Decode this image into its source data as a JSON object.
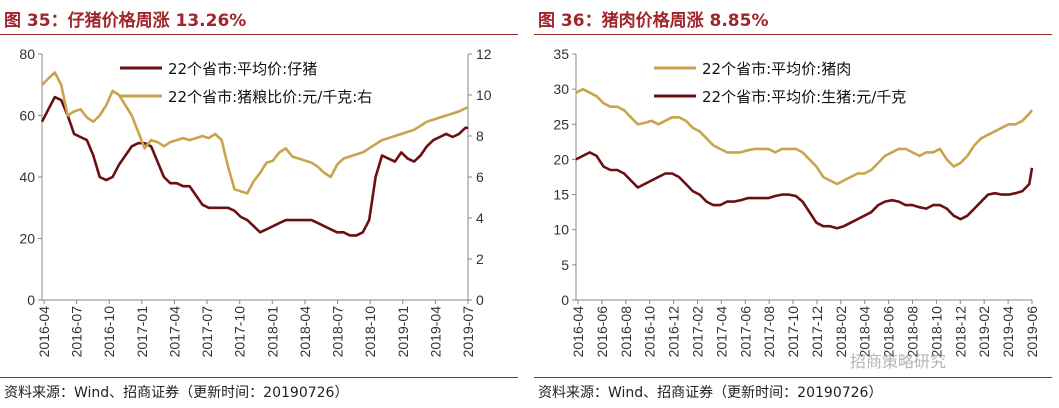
{
  "colors": {
    "title": "#a0262b",
    "dark_series": "#6b0f12",
    "gold_series": "#c8a44c"
  },
  "watermark": "招商策略研究",
  "chart_data": [
    {
      "type": "line",
      "title": "图 35：仔猪价格周涨 13.26%",
      "source": "资料来源：Wind、招商证券（更新时间：20190726）",
      "x_ticks": [
        "2016-04",
        "2016-07",
        "2016-10",
        "2017-01",
        "2017-04",
        "2017-07",
        "2017-10",
        "2018-01",
        "2018-04",
        "2018-07",
        "2018-10",
        "2019-01",
        "2019-04",
        "2019-07"
      ],
      "x_range": [
        2016.25,
        2019.57
      ],
      "y_left": {
        "range": [
          0,
          80
        ],
        "ticks": [
          0,
          20,
          40,
          60,
          80
        ]
      },
      "y_right": {
        "range": [
          0,
          12
        ],
        "ticks": [
          0,
          2,
          4,
          6,
          8,
          10,
          12
        ]
      },
      "legend_placement": "top-center",
      "series": [
        {
          "name": "22个省市:平均价:仔猪",
          "axis": "left",
          "color": "#6b0f12",
          "x": [
            2016.25,
            2016.3,
            2016.35,
            2016.4,
            2016.45,
            2016.5,
            2016.55,
            2016.6,
            2016.65,
            2016.7,
            2016.75,
            2016.8,
            2016.85,
            2016.9,
            2016.95,
            2017.0,
            2017.05,
            2017.1,
            2017.15,
            2017.2,
            2017.25,
            2017.3,
            2017.35,
            2017.4,
            2017.45,
            2017.5,
            2017.55,
            2017.6,
            2017.65,
            2017.7,
            2017.75,
            2017.8,
            2017.85,
            2017.9,
            2017.95,
            2018.0,
            2018.05,
            2018.1,
            2018.15,
            2018.2,
            2018.25,
            2018.3,
            2018.35,
            2018.4,
            2018.45,
            2018.5,
            2018.55,
            2018.6,
            2018.65,
            2018.7,
            2018.75,
            2018.8,
            2018.85,
            2018.9,
            2018.95,
            2019.0,
            2019.05,
            2019.1,
            2019.15,
            2019.2,
            2019.25,
            2019.3,
            2019.35,
            2019.4,
            2019.45,
            2019.5,
            2019.55,
            2019.57
          ],
          "y": [
            58,
            62,
            66,
            65,
            60,
            54,
            53,
            52,
            47,
            40,
            39,
            40,
            44,
            47,
            50,
            51,
            51,
            50,
            45,
            40,
            38,
            38,
            37,
            37,
            34,
            31,
            30,
            30,
            30,
            30,
            29,
            27,
            26,
            24,
            22,
            23,
            24,
            25,
            26,
            26,
            26,
            26,
            26,
            25,
            24,
            23,
            22,
            22,
            21,
            21,
            22,
            26,
            40,
            47,
            46,
            45,
            48,
            46,
            45,
            47,
            50,
            52,
            53,
            54,
            53,
            54,
            56,
            56
          ]
        },
        {
          "name": "22个省市:猪粮比价:元/千克:右",
          "axis": "right",
          "color": "#c8a44c",
          "x": [
            2016.25,
            2016.3,
            2016.35,
            2016.4,
            2016.45,
            2016.5,
            2016.55,
            2016.6,
            2016.65,
            2016.7,
            2016.75,
            2016.8,
            2016.85,
            2016.9,
            2016.95,
            2017.0,
            2017.05,
            2017.1,
            2017.15,
            2017.2,
            2017.25,
            2017.3,
            2017.35,
            2017.4,
            2017.45,
            2017.5,
            2017.55,
            2017.6,
            2017.65,
            2017.7,
            2017.75,
            2017.8,
            2017.85,
            2017.9,
            2017.95,
            2018.0,
            2018.05,
            2018.1,
            2018.15,
            2018.2,
            2018.25,
            2018.3,
            2018.35,
            2018.4,
            2018.45,
            2018.5,
            2018.55,
            2018.6,
            2018.65,
            2018.7,
            2018.75,
            2018.8,
            2018.85,
            2018.9,
            2018.95,
            2019.0,
            2019.05,
            2019.1,
            2019.15,
            2019.2,
            2019.25,
            2019.3,
            2019.35,
            2019.4,
            2019.45,
            2019.5,
            2019.55,
            2019.57
          ],
          "y": [
            10.5,
            10.8,
            11.1,
            10.5,
            9.0,
            9.2,
            9.3,
            8.9,
            8.7,
            9.0,
            9.5,
            10.2,
            10.0,
            9.5,
            9.0,
            8.2,
            7.4,
            7.8,
            7.7,
            7.5,
            7.7,
            7.8,
            7.9,
            7.8,
            7.9,
            8.0,
            7.9,
            8.1,
            7.8,
            6.5,
            5.4,
            5.3,
            5.2,
            5.8,
            6.2,
            6.7,
            6.8,
            7.2,
            7.4,
            7.0,
            6.9,
            6.8,
            6.7,
            6.5,
            6.2,
            6.0,
            6.6,
            6.9,
            7.0,
            7.1,
            7.2,
            7.4,
            7.6,
            7.8,
            7.9,
            8.0,
            8.1,
            8.2,
            8.3,
            8.5,
            8.7,
            8.8,
            8.9,
            9.0,
            9.1,
            9.2,
            9.35,
            9.4
          ]
        }
      ]
    },
    {
      "type": "line",
      "title": "图 36：猪肉价格周涨 8.85%",
      "source": "资料来源：Wind、招商证券（更新时间：20190726）",
      "x_ticks": [
        "2016-04",
        "2016-06",
        "2016-08",
        "2016-10",
        "2016-12",
        "2017-02",
        "2017-04",
        "2017-06",
        "2017-08",
        "2017-10",
        "2017-12",
        "2018-02",
        "2018-04",
        "2018-06",
        "2018-08",
        "2018-10",
        "2018-12",
        "2019-02",
        "2019-04",
        "2019-06"
      ],
      "x_range": [
        2016.25,
        2019.57
      ],
      "y_left": {
        "range": [
          0,
          35
        ],
        "ticks": [
          0,
          5,
          10,
          15,
          20,
          25,
          30,
          35
        ]
      },
      "legend_placement": "top-center",
      "series": [
        {
          "name": "22个省市:平均价:猪肉",
          "axis": "left",
          "color": "#c8a44c",
          "x": [
            2016.25,
            2016.3,
            2016.35,
            2016.4,
            2016.45,
            2016.5,
            2016.55,
            2016.6,
            2016.65,
            2016.7,
            2016.75,
            2016.8,
            2016.85,
            2016.9,
            2016.95,
            2017.0,
            2017.05,
            2017.1,
            2017.15,
            2017.2,
            2017.25,
            2017.3,
            2017.35,
            2017.4,
            2017.45,
            2017.5,
            2017.55,
            2017.6,
            2017.65,
            2017.7,
            2017.75,
            2017.8,
            2017.85,
            2017.9,
            2017.95,
            2018.0,
            2018.05,
            2018.1,
            2018.15,
            2018.2,
            2018.25,
            2018.3,
            2018.35,
            2018.4,
            2018.45,
            2018.5,
            2018.55,
            2018.6,
            2018.65,
            2018.7,
            2018.75,
            2018.8,
            2018.85,
            2018.9,
            2018.95,
            2019.0,
            2019.05,
            2019.1,
            2019.15,
            2019.2,
            2019.25,
            2019.3,
            2019.35,
            2019.4,
            2019.45,
            2019.5,
            2019.55,
            2019.57
          ],
          "y": [
            29.5,
            30.0,
            29.5,
            29.0,
            28.0,
            27.5,
            27.5,
            27.0,
            26.0,
            25.0,
            25.2,
            25.5,
            25.0,
            25.5,
            26.0,
            26.0,
            25.5,
            24.5,
            24.0,
            23.0,
            22.0,
            21.5,
            21.0,
            21.0,
            21.0,
            21.3,
            21.5,
            21.5,
            21.5,
            21.0,
            21.5,
            21.5,
            21.5,
            21.0,
            20.0,
            19.0,
            17.5,
            17.0,
            16.5,
            17.0,
            17.5,
            18.0,
            18.0,
            18.5,
            19.5,
            20.5,
            21.0,
            21.5,
            21.5,
            21.0,
            20.5,
            21.0,
            21.0,
            21.5,
            20.0,
            19.0,
            19.5,
            20.5,
            22.0,
            23.0,
            23.5,
            24.0,
            24.5,
            25.0,
            25.0,
            25.5,
            26.5,
            27.0
          ]
        },
        {
          "name": "22个省市:平均价:生猪:元/千克",
          "axis": "left",
          "color": "#6b0f12",
          "x": [
            2016.25,
            2016.3,
            2016.35,
            2016.4,
            2016.45,
            2016.5,
            2016.55,
            2016.6,
            2016.65,
            2016.7,
            2016.75,
            2016.8,
            2016.85,
            2016.9,
            2016.95,
            2017.0,
            2017.05,
            2017.1,
            2017.15,
            2017.2,
            2017.25,
            2017.3,
            2017.35,
            2017.4,
            2017.45,
            2017.5,
            2017.55,
            2017.6,
            2017.65,
            2017.7,
            2017.75,
            2017.8,
            2017.85,
            2017.9,
            2017.95,
            2018.0,
            2018.05,
            2018.1,
            2018.15,
            2018.2,
            2018.25,
            2018.3,
            2018.35,
            2018.4,
            2018.45,
            2018.5,
            2018.55,
            2018.6,
            2018.65,
            2018.7,
            2018.75,
            2018.8,
            2018.85,
            2018.9,
            2018.95,
            2019.0,
            2019.05,
            2019.1,
            2019.15,
            2019.2,
            2019.25,
            2019.3,
            2019.35,
            2019.4,
            2019.45,
            2019.5,
            2019.55,
            2019.57
          ],
          "y": [
            20.0,
            20.5,
            21.0,
            20.5,
            19.0,
            18.5,
            18.5,
            18.0,
            17.0,
            16.0,
            16.5,
            17.0,
            17.5,
            18.0,
            18.0,
            17.5,
            16.5,
            15.5,
            15.0,
            14.0,
            13.5,
            13.5,
            14.0,
            14.0,
            14.2,
            14.5,
            14.5,
            14.5,
            14.5,
            14.8,
            15.0,
            15.0,
            14.8,
            14.0,
            12.5,
            11.0,
            10.5,
            10.5,
            10.2,
            10.5,
            11.0,
            11.5,
            12.0,
            12.5,
            13.5,
            14.0,
            14.2,
            14.0,
            13.5,
            13.5,
            13.2,
            13.0,
            13.5,
            13.5,
            13.0,
            12.0,
            11.5,
            12.0,
            13.0,
            14.0,
            15.0,
            15.2,
            15.0,
            15.0,
            15.2,
            15.5,
            16.5,
            18.8
          ]
        }
      ]
    }
  ]
}
